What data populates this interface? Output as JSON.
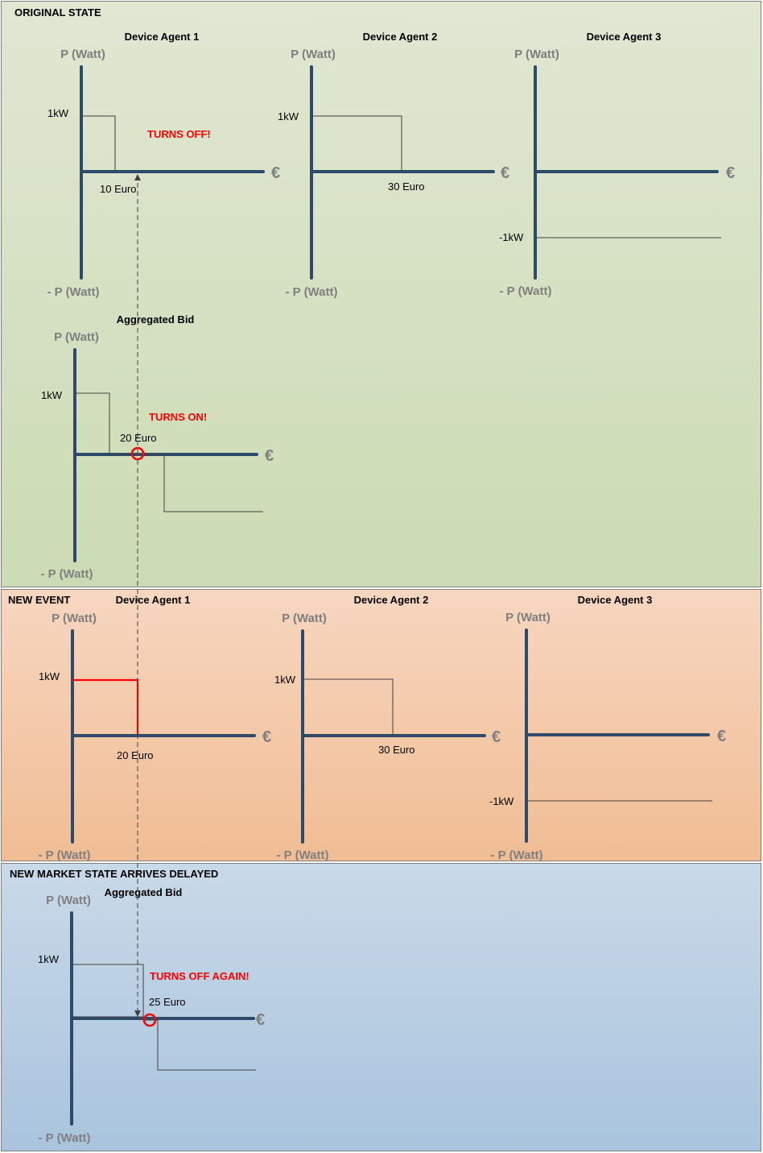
{
  "original": {
    "title": "ORIGINAL STATE",
    "agent1": {
      "title": "Device Agent 1",
      "y_top": "P (Watt)",
      "y_bottom": "- P (Watt)",
      "x_unit": "€",
      "power": "1kW",
      "price": "10 Euro",
      "status": "TURNS OFF!"
    },
    "agent2": {
      "title": "Device Agent 2",
      "y_top": "P (Watt)",
      "y_bottom": "- P (Watt)",
      "x_unit": "€",
      "power": "1kW",
      "price": "30 Euro"
    },
    "agent3": {
      "title": "Device Agent 3",
      "y_top": "P (Watt)",
      "y_bottom": "- P (Watt)",
      "x_unit": "€",
      "power": "-1kW"
    },
    "aggregate": {
      "title": "Aggregated Bid",
      "y_top": "P (Watt)",
      "y_bottom": "- P (Watt)",
      "x_unit": "€",
      "power": "1kW",
      "price": "20 Euro",
      "status": "TURNS ON!"
    }
  },
  "event": {
    "title": "NEW EVENT",
    "agent1": {
      "title": "Device Agent 1",
      "y_top": "P (Watt)",
      "y_bottom": "- P (Watt)",
      "x_unit": "€",
      "power": "1kW",
      "price": "20 Euro"
    },
    "agent2": {
      "title": "Device Agent 2",
      "y_top": "P (Watt)",
      "y_bottom": "- P (Watt)",
      "x_unit": "€",
      "power": "1kW",
      "price": "30 Euro"
    },
    "agent3": {
      "title": "Device Agent 3",
      "y_top": "P (Watt)",
      "y_bottom": "- P (Watt)",
      "x_unit": "€",
      "power": "-1kW"
    }
  },
  "market": {
    "title": "NEW MARKET STATE ARRIVES DELAYED",
    "aggregate": {
      "title": "Aggregated Bid",
      "y_top": "P (Watt)",
      "y_bottom": "- P (Watt)",
      "x_unit": "€",
      "power": "1kW",
      "price": "25 Euro",
      "status": "TURNS OFF AGAIN!"
    }
  },
  "colors": {
    "axis": "#2e4a6b",
    "highlight": "#ff0000",
    "label_gray": "#7f7f7f",
    "original_bg": "#d8e3c6",
    "event_bg": "#f3c9a8",
    "market_bg": "#b8cfe4"
  }
}
